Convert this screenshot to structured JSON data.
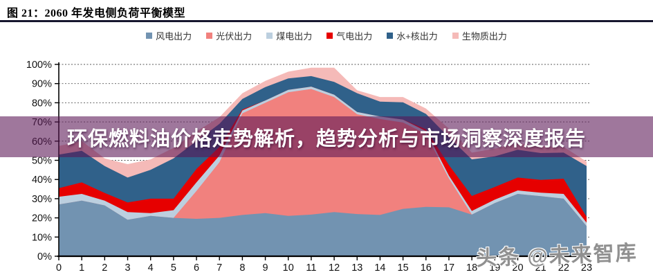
{
  "header": {
    "title": "图 21：2060 年发电侧负荷平衡模型"
  },
  "overlay": {
    "title": "环保燃料油价格走势解析，趋势分析与市场洞察深度报告"
  },
  "watermark": {
    "text": "头条 @未来智库"
  },
  "chart_data": {
    "type": "area",
    "stacked": true,
    "title": "2060 年发电侧负荷平衡模型",
    "xlabel": "",
    "ylabel": "",
    "x": [
      0,
      1,
      2,
      3,
      4,
      5,
      6,
      7,
      8,
      9,
      10,
      11,
      12,
      13,
      14,
      15,
      16,
      17,
      18,
      19,
      20,
      21,
      22,
      23
    ],
    "y_ticks": [
      "0%",
      "10%",
      "20%",
      "30%",
      "40%",
      "50%",
      "60%",
      "70%",
      "80%",
      "90%",
      "100%"
    ],
    "ylim": [
      0,
      100
    ],
    "grid": "horizontal-dashed",
    "legend_position": "top",
    "series": [
      {
        "key": "wind",
        "name": "风电出力",
        "color": "#7293B1",
        "values": [
          27,
          29,
          26.5,
          19,
          21,
          20,
          19.5,
          20,
          21.5,
          22.5,
          21,
          21.7,
          23,
          22,
          21.5,
          24.7,
          25.7,
          25.5,
          21.7,
          27.7,
          32.5,
          31.3,
          30,
          15.7
        ]
      },
      {
        "key": "solar",
        "name": "光伏出力",
        "color": "#F1817E",
        "values": [
          0,
          0,
          0,
          0,
          0,
          0,
          14.5,
          29,
          53,
          57.5,
          64.5,
          65.5,
          60,
          52,
          50,
          45,
          38,
          15,
          0,
          0,
          0,
          0,
          0,
          0
        ]
      },
      {
        "key": "coal",
        "name": "煤电出力",
        "color": "#BCCFDF",
        "values": [
          4,
          3.5,
          2.5,
          4,
          1.5,
          4,
          4.5,
          3.5,
          1.5,
          1.2,
          1.2,
          1.2,
          1.2,
          1.2,
          1.3,
          1.5,
          1.5,
          1.5,
          1.9,
          1.8,
          1.8,
          1.8,
          2.5,
          1.8
        ]
      },
      {
        "key": "gas",
        "name": "气电出力",
        "color": "#E60000",
        "values": [
          4.5,
          6,
          4,
          5,
          7.5,
          6,
          7,
          4.5,
          0.5,
          0,
          0,
          0,
          0,
          0,
          0,
          0,
          1,
          5.5,
          7.8,
          6.6,
          6.7,
          6.7,
          7.9,
          3
        ]
      },
      {
        "key": "nuclear",
        "name": "水+核出力",
        "color": "#30618A",
        "values": [
          17.5,
          16.5,
          14,
          13,
          15,
          21,
          14.5,
          12,
          5.5,
          7,
          6,
          5.5,
          6.7,
          9.8,
          7.8,
          9,
          8,
          14.5,
          19.1,
          16,
          14.5,
          14,
          13.6,
          26.5
        ]
      },
      {
        "key": "biomass",
        "name": "生物质出力",
        "color": "#F5BAB8",
        "values": [
          4.5,
          5,
          4,
          7,
          5.5,
          5.5,
          5,
          3.5,
          3,
          3.2,
          3.5,
          4.4,
          7.4,
          1.5,
          2.4,
          2.8,
          2.8,
          4.5,
          3.5,
          4,
          3.5,
          3.5,
          3,
          2.4
        ]
      }
    ]
  }
}
